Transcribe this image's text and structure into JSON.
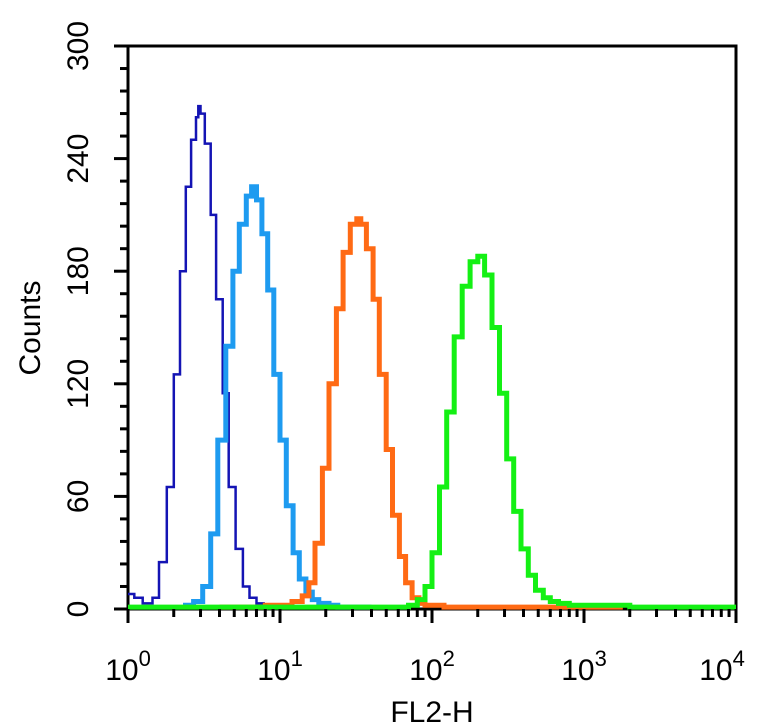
{
  "chart_data": {
    "type": "line",
    "title": "",
    "xlabel": "FL2-H",
    "ylabel": "Counts",
    "x_scale": "log",
    "xlim": [
      1,
      10000
    ],
    "ylim": [
      0,
      300
    ],
    "grid": false,
    "legend": "none",
    "x_ticks": [
      {
        "value": 1,
        "base": "10",
        "exp": "0"
      },
      {
        "value": 10,
        "base": "10",
        "exp": "1"
      },
      {
        "value": 100,
        "base": "10",
        "exp": "2"
      },
      {
        "value": 1000,
        "base": "10",
        "exp": "3"
      },
      {
        "value": 10000,
        "base": "10",
        "exp": "4"
      }
    ],
    "y_ticks": [
      {
        "value": 0,
        "label": "0"
      },
      {
        "value": 60,
        "label": "60"
      },
      {
        "value": 120,
        "label": "120"
      },
      {
        "value": 180,
        "label": "180"
      },
      {
        "value": 240,
        "label": "240"
      },
      {
        "value": 300,
        "label": "300"
      }
    ],
    "series": [
      {
        "color": "#1414b4",
        "stroke": "thin",
        "x": [
          1.0,
          1.1,
          1.25,
          1.45,
          1.6,
          1.8,
          2.0,
          2.2,
          2.4,
          2.6,
          2.8,
          2.9,
          3.0,
          3.2,
          3.5,
          3.8,
          4.2,
          4.6,
          5.1,
          5.7,
          6.3,
          7.0,
          7.8,
          8.6
        ],
        "y": [
          8,
          6,
          3,
          6,
          25,
          65,
          125,
          180,
          225,
          250,
          262,
          268,
          264,
          248,
          210,
          165,
          115,
          65,
          32,
          12,
          6,
          3,
          2,
          1
        ]
      },
      {
        "color": "#1e9bf0",
        "stroke": "thick",
        "x": [
          2.3,
          2.7,
          3.1,
          3.5,
          3.9,
          4.4,
          4.9,
          5.4,
          6.0,
          6.5,
          7.0,
          7.6,
          8.3,
          9.1,
          10.0,
          11.0,
          12.2,
          13.4,
          14.8,
          16.3,
          18.0,
          21.0,
          24.0,
          30.0,
          40.0
        ],
        "y": [
          2,
          4,
          12,
          40,
          90,
          140,
          180,
          205,
          220,
          225,
          218,
          200,
          170,
          125,
          90,
          55,
          30,
          16,
          9,
          5,
          3,
          2,
          1,
          1,
          1
        ]
      },
      {
        "color": "#ff6a14",
        "stroke": "thick",
        "x": [
          4.0,
          8.0,
          12.0,
          14.0,
          15.5,
          17.0,
          19.0,
          21.0,
          23.5,
          26.0,
          29.0,
          32.0,
          34.0,
          37.0,
          41.0,
          45.0,
          50.0,
          55.0,
          61.0,
          67.0,
          74.0,
          82.0,
          90.0,
          120.0,
          200.0,
          1000.0,
          1800.0
        ],
        "y": [
          1,
          2,
          4,
          7,
          14,
          35,
          75,
          120,
          160,
          190,
          205,
          208,
          205,
          192,
          165,
          125,
          85,
          50,
          28,
          14,
          6,
          3,
          2,
          1,
          1,
          1,
          1
        ]
      },
      {
        "color": "#14f014",
        "stroke": "thick",
        "x": [
          1.0,
          50.0,
          70.0,
          80.0,
          90.0,
          100.0,
          112.0,
          125.0,
          140.0,
          158.0,
          178.0,
          200.0,
          222.0,
          248.0,
          278.0,
          310.0,
          345.0,
          385.0,
          430.0,
          480.0,
          540.0,
          600.0,
          680.0,
          800.0,
          1100.0,
          2000.0,
          5000.0,
          10000.0
        ],
        "y": [
          1,
          1,
          2,
          5,
          12,
          30,
          65,
          105,
          145,
          172,
          185,
          188,
          178,
          150,
          115,
          80,
          52,
          32,
          18,
          10,
          6,
          4,
          3,
          2,
          2,
          1,
          1,
          1
        ]
      }
    ]
  }
}
